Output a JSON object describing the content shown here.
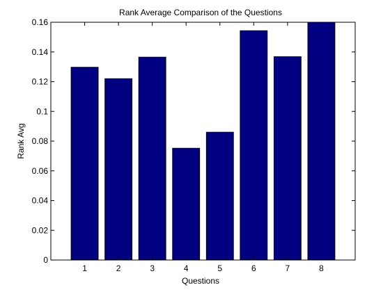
{
  "chart_data": {
    "type": "bar",
    "title": "Rank Average Comparison of the Questions",
    "xlabel": "Questions",
    "ylabel": "Rank Avg",
    "categories": [
      "1",
      "2",
      "3",
      "4",
      "5",
      "6",
      "7",
      "8"
    ],
    "values": [
      0.1297,
      0.122,
      0.1365,
      0.0752,
      0.086,
      0.1543,
      0.1368,
      0.16
    ],
    "ylim": [
      0,
      0.16
    ],
    "yticks": [
      0,
      0.02,
      0.04,
      0.06,
      0.08,
      0.1,
      0.12,
      0.14,
      0.16
    ],
    "ytick_labels": [
      "0",
      "0.02",
      "0.04",
      "0.06",
      "0.08",
      "0.1",
      "0.12",
      "0.14",
      "0.16"
    ],
    "grid": false,
    "legend": "none",
    "colors": {
      "bar": "#000080",
      "bar_edge": "#000000",
      "axes": "#000000",
      "background": "#ffffff"
    }
  }
}
